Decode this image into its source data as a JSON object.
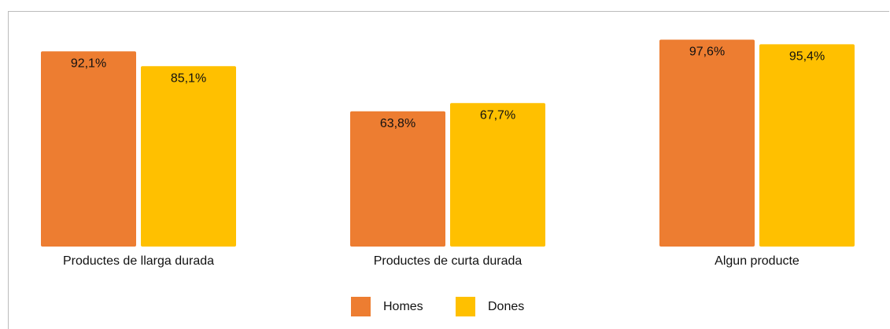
{
  "chart_data": {
    "type": "bar",
    "categories": [
      "Productes de llarga durada",
      "Productes de curta durada",
      "Algun producte"
    ],
    "series": [
      {
        "name": "Homes",
        "color": "#ed7d31",
        "values": [
          92.1,
          63.8,
          97.6
        ],
        "value_labels": [
          "92,1%",
          "63,8%",
          "97,6%"
        ]
      },
      {
        "name": "Dones",
        "color": "#ffc000",
        "values": [
          85.1,
          67.7,
          95.4
        ],
        "value_labels": [
          "85,1%",
          "67,7%",
          "95,4%"
        ]
      }
    ]
  }
}
